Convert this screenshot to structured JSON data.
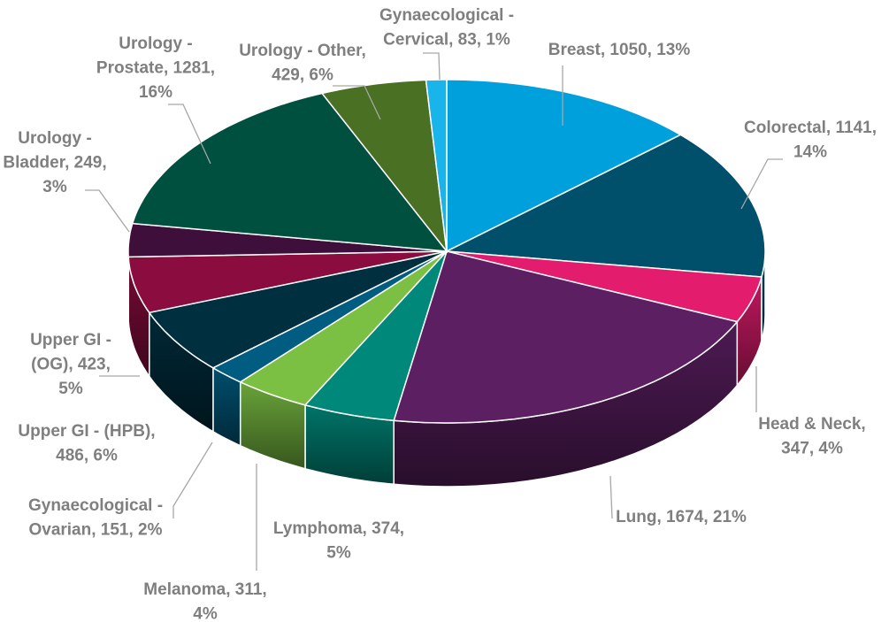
{
  "chart_data": {
    "type": "pie3d",
    "values": [
      1050,
      1141,
      347,
      1674,
      374,
      311,
      151,
      486,
      423,
      249,
      1281,
      429,
      83
    ],
    "value_labels": [
      [
        "Breast, 1050, 13%"
      ],
      [
        "Colorectal, 1141,",
        "14%"
      ],
      [
        "Head & Neck,",
        "347, 4%"
      ],
      [
        "Lung, 1674, 21%"
      ],
      [
        "Lymphoma, 374,",
        "5%"
      ],
      [
        "Melanoma, 311,",
        "4%"
      ],
      [
        "Gynaecological -",
        "Ovarian, 151, 2%"
      ],
      [
        "Upper GI - (HPB),",
        "486, 6%"
      ],
      [
        "Upper GI -",
        "(OG), 423,",
        "5%"
      ],
      [
        "Urology -",
        "Bladder, 249,",
        "3%"
      ],
      [
        "Urology -",
        "Prostate, 1281,",
        "16%"
      ],
      [
        "Urology - Other,",
        "429, 6%"
      ],
      [
        "Gynaecological -",
        "Cervical, 83, 1%"
      ]
    ],
    "colors": [
      "#00a0dd",
      "#004f6b",
      "#e31c6e",
      "#5b1f62",
      "#00897a",
      "#7bc043",
      "#005c80",
      "#002f3f",
      "#8b0d40",
      "#3d0f3a",
      "#00503f",
      "#4a7024",
      "#18b4ea"
    ]
  }
}
